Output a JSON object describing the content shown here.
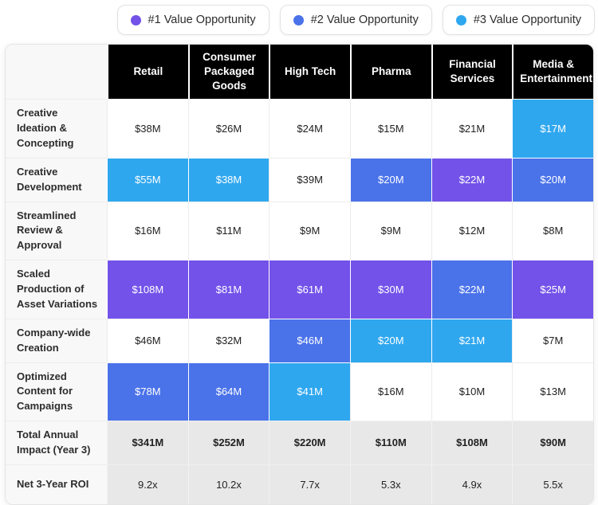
{
  "colors": {
    "tier1": "#7352E9",
    "tier2": "#4A72E9",
    "tier3": "#2FA7EF",
    "header_bg": "#000000",
    "header_text": "#ffffff",
    "label_bg": "#f8f8f8",
    "summary_bg": "#e8e8e8"
  },
  "legend": {
    "items": [
      {
        "label": "#1 Value Opportunity",
        "tier": 1,
        "color": "#7352E9"
      },
      {
        "label": "#2 Value Opportunity",
        "tier": 2,
        "color": "#4A72E9"
      },
      {
        "label": "#3 Value Opportunity",
        "tier": 3,
        "color": "#2FA7EF"
      }
    ]
  },
  "table": {
    "columns": [
      "Retail",
      "Consumer Packaged Goods",
      "High Tech",
      "Pharma",
      "Financial Services",
      "Media & Entertainment"
    ],
    "rows": [
      {
        "label": "Creative Ideation & Concepting",
        "cells": [
          {
            "value": "$38M"
          },
          {
            "value": "$26M"
          },
          {
            "value": "$24M"
          },
          {
            "value": "$15M"
          },
          {
            "value": "$21M"
          },
          {
            "value": "$17M",
            "tier": 3
          }
        ]
      },
      {
        "label": "Creative Development",
        "cells": [
          {
            "value": "$55M",
            "tier": 3
          },
          {
            "value": "$38M",
            "tier": 3
          },
          {
            "value": "$39M"
          },
          {
            "value": "$20M",
            "tier": 2
          },
          {
            "value": "$22M",
            "tier": 1
          },
          {
            "value": "$20M",
            "tier": 2
          }
        ]
      },
      {
        "label": "Streamlined Review & Approval",
        "cells": [
          {
            "value": "$16M"
          },
          {
            "value": "$11M"
          },
          {
            "value": "$9M"
          },
          {
            "value": "$9M"
          },
          {
            "value": "$12M"
          },
          {
            "value": "$8M"
          }
        ]
      },
      {
        "label": "Scaled Production of Asset Variations",
        "cells": [
          {
            "value": "$108M",
            "tier": 1
          },
          {
            "value": "$81M",
            "tier": 1
          },
          {
            "value": "$61M",
            "tier": 1
          },
          {
            "value": "$30M",
            "tier": 1
          },
          {
            "value": "$22M",
            "tier": 2
          },
          {
            "value": "$25M",
            "tier": 1
          }
        ]
      },
      {
        "label": "Company-wide Creation",
        "cells": [
          {
            "value": "$46M"
          },
          {
            "value": "$32M"
          },
          {
            "value": "$46M",
            "tier": 2
          },
          {
            "value": "$20M",
            "tier": 3
          },
          {
            "value": "$21M",
            "tier": 3
          },
          {
            "value": "$7M"
          }
        ]
      },
      {
        "label": "Optimized Content for Campaigns",
        "cells": [
          {
            "value": "$78M",
            "tier": 2
          },
          {
            "value": "$64M",
            "tier": 2
          },
          {
            "value": "$41M",
            "tier": 3
          },
          {
            "value": "$16M"
          },
          {
            "value": "$10M"
          },
          {
            "value": "$13M"
          }
        ]
      },
      {
        "label": "Total Annual Impact (Year 3)",
        "summary": true,
        "bold_values": true,
        "cells": [
          {
            "value": "$341M"
          },
          {
            "value": "$252M"
          },
          {
            "value": "$220M"
          },
          {
            "value": "$110M"
          },
          {
            "value": "$108M"
          },
          {
            "value": "$90M"
          }
        ]
      },
      {
        "label": "Net 3-Year ROI",
        "summary": true,
        "cells": [
          {
            "value": "9.2x"
          },
          {
            "value": "10.2x"
          },
          {
            "value": "7.7x"
          },
          {
            "value": "5.3x"
          },
          {
            "value": "4.9x"
          },
          {
            "value": "5.5x"
          }
        ]
      }
    ]
  },
  "chart_data": {
    "type": "table",
    "title": "",
    "columns": [
      "Retail",
      "Consumer Packaged Goods",
      "High Tech",
      "Pharma",
      "Financial Services",
      "Media & Entertainment"
    ],
    "row_labels": [
      "Creative Ideation & Concepting",
      "Creative Development",
      "Streamlined Review & Approval",
      "Scaled Production of Asset Variations",
      "Company-wide Creation",
      "Optimized Content for Campaigns",
      "Total Annual Impact (Year 3)",
      "Net 3-Year ROI"
    ],
    "values_millions_usd": [
      [
        38,
        26,
        24,
        15,
        21,
        17
      ],
      [
        55,
        38,
        39,
        20,
        22,
        20
      ],
      [
        16,
        11,
        9,
        9,
        12,
        8
      ],
      [
        108,
        81,
        61,
        30,
        22,
        25
      ],
      [
        46,
        32,
        46,
        20,
        21,
        7
      ],
      [
        78,
        64,
        41,
        16,
        10,
        13
      ],
      [
        341,
        252,
        220,
        110,
        108,
        90
      ]
    ],
    "net_3_year_roi": [
      9.2,
      10.2,
      7.7,
      5.3,
      4.9,
      5.5
    ],
    "legend": [
      "#1 Value Opportunity",
      "#2 Value Opportunity",
      "#3 Value Opportunity"
    ],
    "legend_position": "top-right",
    "highlight_tiers_by_row": [
      [
        0,
        0,
        0,
        0,
        0,
        3
      ],
      [
        3,
        3,
        0,
        2,
        1,
        2
      ],
      [
        0,
        0,
        0,
        0,
        0,
        0
      ],
      [
        1,
        1,
        1,
        1,
        2,
        1
      ],
      [
        0,
        0,
        2,
        3,
        3,
        0
      ],
      [
        2,
        2,
        3,
        0,
        0,
        0
      ],
      [
        0,
        0,
        0,
        0,
        0,
        0
      ],
      [
        0,
        0,
        0,
        0,
        0,
        0
      ]
    ]
  }
}
